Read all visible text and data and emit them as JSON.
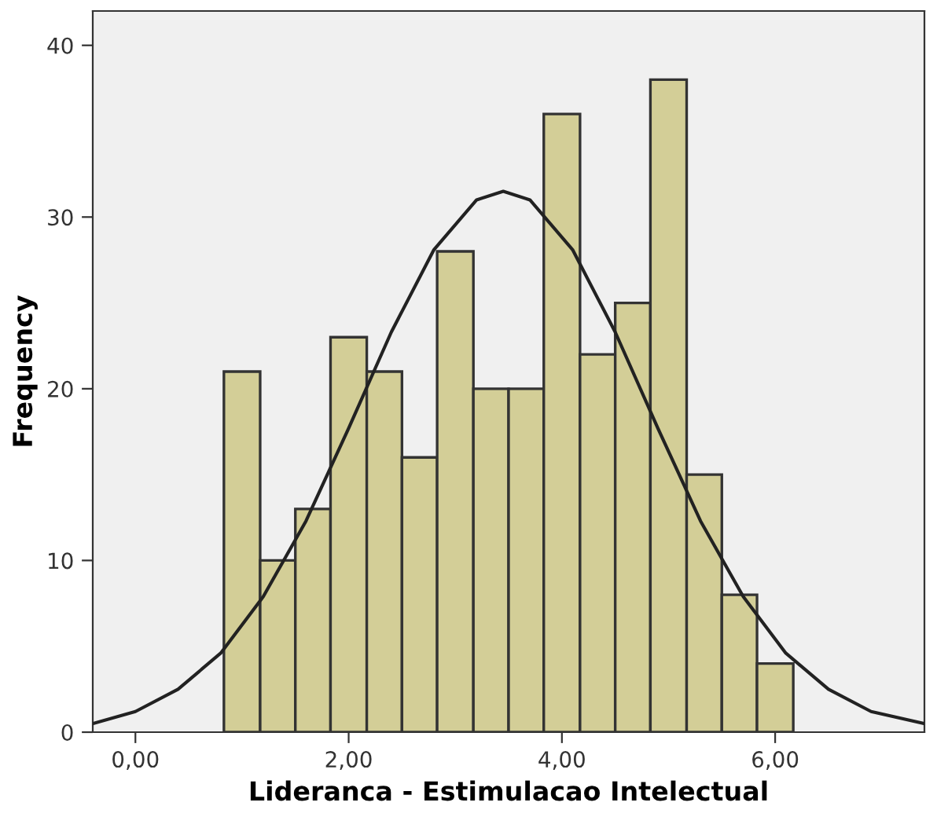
{
  "chart_data": {
    "type": "histogram",
    "xlabel": "Lideranca - Estimulacao Intelectual",
    "ylabel": "Frequency",
    "bins": [
      0.83,
      1.17,
      1.5,
      1.83,
      2.17,
      2.5,
      2.83,
      3.17,
      3.5,
      3.83,
      4.17,
      4.5,
      4.83,
      5.17,
      5.5,
      5.83,
      6.17
    ],
    "values": [
      21,
      10,
      13,
      23,
      21,
      16,
      28,
      20,
      20,
      36,
      22,
      25,
      38,
      15,
      8,
      4
    ],
    "color": "#d3ce97",
    "series": [
      {
        "type": "line",
        "color": "#222222",
        "x": [
          -0.4,
          0.0,
          0.4,
          0.8,
          1.2,
          1.6,
          2.0,
          2.4,
          2.8,
          3.2,
          3.45,
          3.7,
          4.1,
          4.5,
          4.9,
          5.3,
          5.7,
          6.1,
          6.5,
          6.9,
          7.4
        ],
        "values": [
          0.5,
          1.2,
          2.5,
          4.6,
          7.9,
          12.3,
          17.7,
          23.3,
          28.1,
          31.0,
          31.5,
          31.0,
          28.1,
          23.3,
          17.7,
          12.3,
          7.9,
          4.6,
          2.5,
          1.2,
          0.5
        ]
      }
    ],
    "xlim": [
      -0.4,
      7.4
    ],
    "ylim": [
      0,
      42
    ],
    "xticks": [
      {
        "value": 0,
        "label": "0,00"
      },
      {
        "value": 2,
        "label": "2,00"
      },
      {
        "value": 4,
        "label": "4,00"
      },
      {
        "value": 6,
        "label": "6,00"
      }
    ],
    "yticks": [
      0,
      10,
      20,
      30,
      40
    ],
    "grid": false,
    "legend": false
  }
}
